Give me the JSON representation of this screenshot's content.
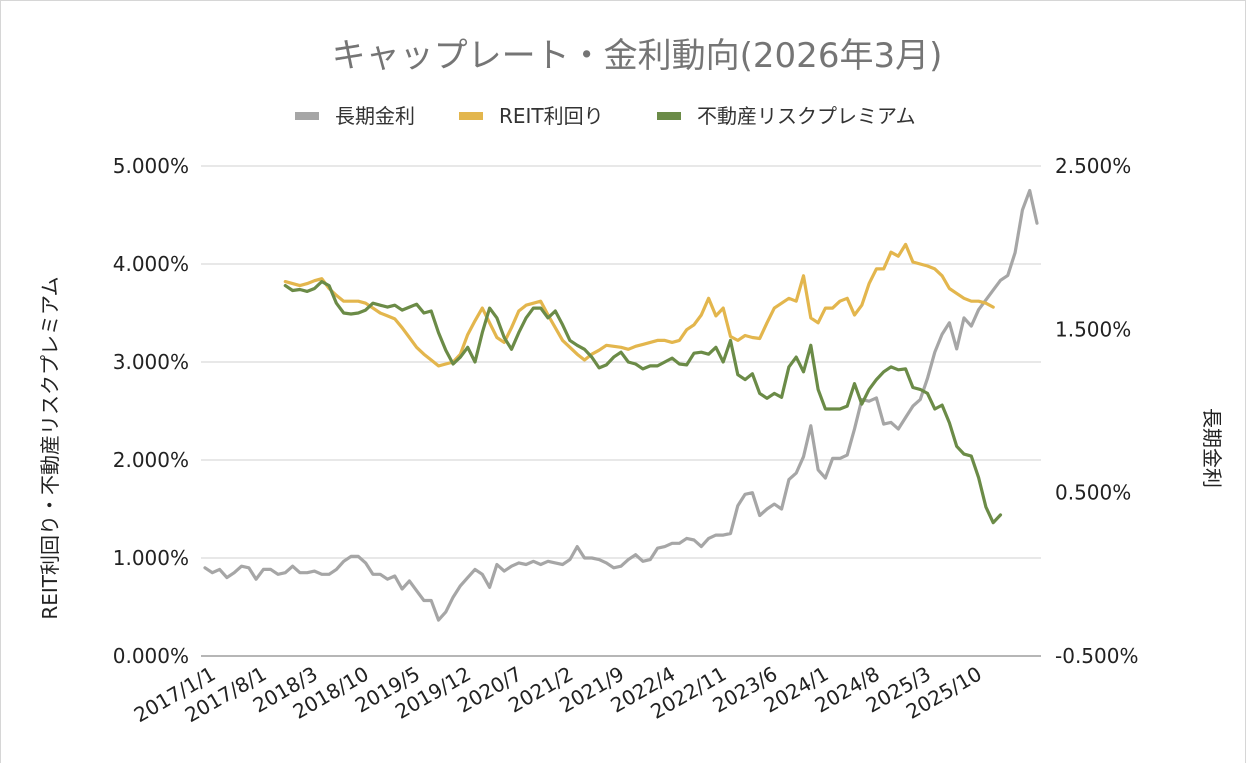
{
  "chart_data": {
    "type": "line",
    "title": "キャップレート・金利動向(2026年3月)",
    "ylabel_left": "REIT利回り・不動産リスクプレミアム",
    "ylabel_right": "長期金利",
    "y_left": {
      "min": 0,
      "max": 5,
      "ticks": [
        "0.000%",
        "1.000%",
        "2.000%",
        "3.000%",
        "4.000%",
        "5.000%"
      ]
    },
    "y_right": {
      "min": -0.5,
      "max": 2.5,
      "ticks": [
        "-0.500%",
        "0.500%",
        "1.500%",
        "2.500%"
      ],
      "tick_values": [
        -0.5,
        0.5,
        1.5,
        2.5
      ]
    },
    "x_ticks": [
      "2017/1/1",
      "2017/8/1",
      "2018/3",
      "2018/10",
      "2019/5",
      "2019/12",
      "2020/7",
      "2021/2",
      "2021/9",
      "2022/4",
      "2022/11",
      "2023/6",
      "2024/1",
      "2024/8",
      "2025/3",
      "2025/10"
    ],
    "x_tick_index": [
      0,
      7,
      14,
      21,
      28,
      35,
      42,
      49,
      56,
      63,
      70,
      77,
      84,
      91,
      98,
      105
    ],
    "grid": true,
    "legend_position": "top",
    "series": [
      {
        "name": "長期金利",
        "axis": "right",
        "color": "#a6a6a6",
        "values": [
          0.04,
          0.01,
          0.03,
          -0.02,
          0.01,
          0.05,
          0.04,
          -0.03,
          0.03,
          0.03,
          0.0,
          0.01,
          0.05,
          0.01,
          0.01,
          0.02,
          0.0,
          0.0,
          0.03,
          0.08,
          0.11,
          0.11,
          0.07,
          0.0,
          0.0,
          -0.03,
          -0.01,
          -0.09,
          -0.04,
          -0.1,
          -0.16,
          -0.16,
          -0.28,
          -0.23,
          -0.14,
          -0.07,
          -0.02,
          0.03,
          0.0,
          -0.08,
          0.06,
          0.02,
          0.05,
          0.07,
          0.06,
          0.08,
          0.06,
          0.08,
          0.07,
          0.06,
          0.09,
          0.17,
          0.1,
          0.1,
          0.09,
          0.07,
          0.04,
          0.05,
          0.09,
          0.12,
          0.08,
          0.09,
          0.16,
          0.17,
          0.19,
          0.19,
          0.22,
          0.21,
          0.17,
          0.22,
          0.24,
          0.24,
          0.25,
          0.42,
          0.49,
          0.5,
          0.36,
          0.4,
          0.43,
          0.4,
          0.58,
          0.62,
          0.72,
          0.91,
          0.64,
          0.59,
          0.71,
          0.71,
          0.73,
          0.89,
          1.07,
          1.06,
          1.08,
          0.92,
          0.93,
          0.89,
          0.96,
          1.03,
          1.07,
          1.2,
          1.36,
          1.47,
          1.54,
          1.38,
          1.57,
          1.52,
          1.62,
          1.68,
          1.74,
          1.8,
          1.83,
          1.97,
          2.23,
          2.35,
          2.15
        ]
      },
      {
        "name": "REIT利回り",
        "axis": "left",
        "color": "#e3b64d",
        "values": [
          null,
          null,
          null,
          null,
          null,
          null,
          null,
          null,
          null,
          null,
          null,
          3.82,
          3.8,
          3.78,
          3.8,
          3.83,
          3.85,
          3.75,
          3.68,
          3.62,
          3.62,
          3.62,
          3.6,
          3.55,
          3.5,
          3.47,
          3.44,
          3.35,
          3.25,
          3.15,
          3.08,
          3.02,
          2.96,
          2.98,
          3.0,
          3.08,
          3.28,
          3.42,
          3.55,
          3.4,
          3.25,
          3.2,
          3.35,
          3.52,
          3.58,
          3.6,
          3.62,
          3.48,
          3.35,
          3.22,
          3.15,
          3.08,
          3.02,
          3.08,
          3.12,
          3.17,
          3.16,
          3.15,
          3.13,
          3.16,
          3.18,
          3.2,
          3.22,
          3.22,
          3.2,
          3.22,
          3.33,
          3.38,
          3.48,
          3.65,
          3.47,
          3.55,
          3.26,
          3.22,
          3.27,
          3.25,
          3.24,
          3.4,
          3.55,
          3.6,
          3.65,
          3.62,
          3.88,
          3.45,
          3.4,
          3.55,
          3.55,
          3.62,
          3.65,
          3.48,
          3.58,
          3.8,
          3.95,
          3.95,
          4.12,
          4.08,
          4.2,
          4.02,
          4.0,
          3.98,
          3.95,
          3.88,
          3.75,
          3.7,
          3.65,
          3.62,
          3.62,
          3.6,
          3.56
        ]
      },
      {
        "name": "不動産リスクプレミアム",
        "axis": "left",
        "color": "#6b8b47",
        "values": [
          null,
          null,
          null,
          null,
          null,
          null,
          null,
          null,
          null,
          null,
          null,
          3.78,
          3.73,
          3.74,
          3.72,
          3.75,
          3.82,
          3.78,
          3.6,
          3.5,
          3.49,
          3.5,
          3.53,
          3.6,
          3.58,
          3.56,
          3.58,
          3.53,
          3.56,
          3.59,
          3.5,
          3.52,
          3.3,
          3.12,
          2.98,
          3.05,
          3.15,
          3.0,
          3.3,
          3.55,
          3.45,
          3.25,
          3.13,
          3.3,
          3.45,
          3.55,
          3.55,
          3.45,
          3.52,
          3.38,
          3.22,
          3.17,
          3.13,
          3.05,
          2.94,
          2.97,
          3.05,
          3.1,
          3.0,
          2.98,
          2.93,
          2.96,
          2.96,
          3.0,
          3.04,
          2.98,
          2.97,
          3.09,
          3.1,
          3.08,
          3.15,
          3.0,
          3.22,
          2.87,
          2.82,
          2.88,
          2.68,
          2.63,
          2.68,
          2.64,
          2.95,
          3.05,
          2.9,
          3.17,
          2.72,
          2.52,
          2.52,
          2.52,
          2.55,
          2.78,
          2.57,
          2.72,
          2.82,
          2.9,
          2.95,
          2.92,
          2.93,
          2.74,
          2.72,
          2.68,
          2.52,
          2.56,
          2.38,
          2.14,
          2.06,
          2.04,
          1.82,
          1.52,
          1.36,
          1.44
        ]
      }
    ]
  }
}
